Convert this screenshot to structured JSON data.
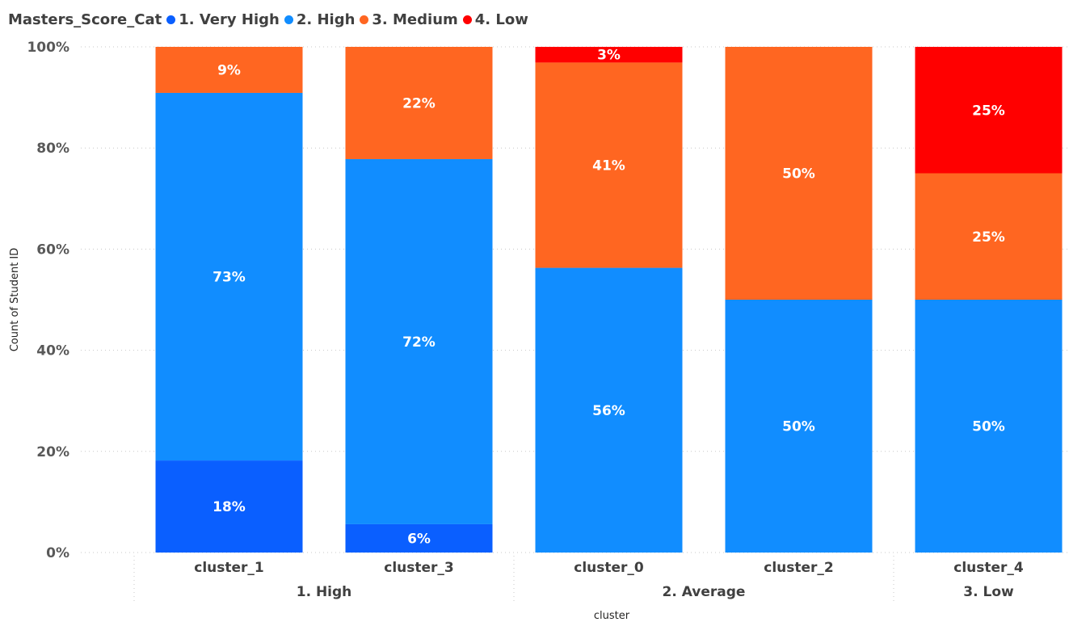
{
  "chart_data": {
    "type": "bar",
    "stacked": "100%",
    "legend": {
      "title": "Masters_Score_Cat",
      "placement": "top-left",
      "entries": [
        {
          "name": "1. Very High",
          "color": "#0A5FFF"
        },
        {
          "name": "2. High",
          "color": "#118DFF"
        },
        {
          "name": "3. Medium",
          "color": "#FF6621"
        },
        {
          "name": "4. Low",
          "color": "#FF0000"
        }
      ]
    },
    "xlabel": "cluster",
    "ylabel": "Count of Student ID",
    "ylim": [
      0,
      100
    ],
    "yticks": [
      "0%",
      "20%",
      "40%",
      "60%",
      "80%",
      "100%"
    ],
    "grid": true,
    "groups": [
      {
        "label": "1. High",
        "categories": [
          "cluster_1",
          "cluster_3"
        ]
      },
      {
        "label": "2. Average",
        "categories": [
          "cluster_0",
          "cluster_2"
        ]
      },
      {
        "label": "3. Low",
        "categories": [
          "cluster_4"
        ]
      }
    ],
    "categories": [
      "cluster_1",
      "cluster_3",
      "cluster_0",
      "cluster_2",
      "cluster_4"
    ],
    "series": [
      {
        "name": "1. Very High",
        "values": [
          18.2,
          5.6,
          0,
          0,
          0
        ],
        "labels": [
          "18%",
          "6%",
          "",
          "",
          ""
        ]
      },
      {
        "name": "2. High",
        "values": [
          72.7,
          72.2,
          56.3,
          50,
          50
        ],
        "labels": [
          "73%",
          "72%",
          "56%",
          "50%",
          "50%"
        ]
      },
      {
        "name": "3. Medium",
        "values": [
          9.1,
          22.2,
          40.6,
          50,
          25
        ],
        "labels": [
          "9%",
          "22%",
          "41%",
          "50%",
          "25%"
        ]
      },
      {
        "name": "4. Low",
        "values": [
          0,
          0,
          3.1,
          0,
          25
        ],
        "labels": [
          "",
          "",
          "3%",
          "",
          "25%"
        ]
      }
    ]
  }
}
